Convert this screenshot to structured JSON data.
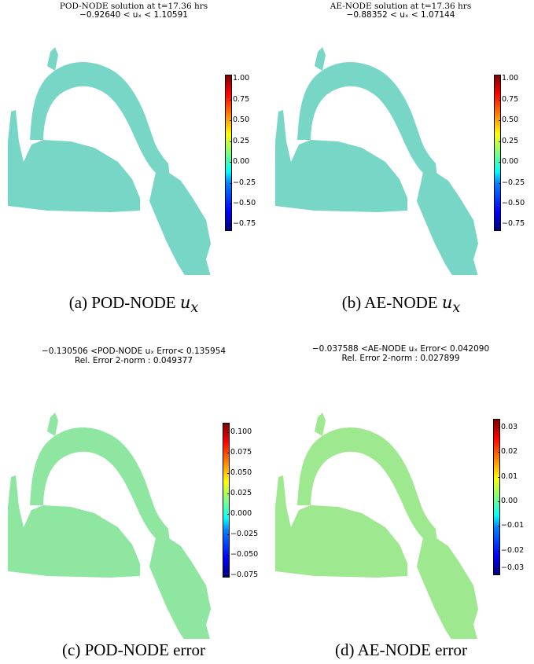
{
  "panels": [
    {
      "title_line1": "POD-NODE solution at t=17.36 hrs",
      "title_line2": "−0.92640 < uₓ < 1.10591",
      "caption_prefix": "(a) POD-NODE ",
      "caption_math": "u",
      "caption_sub": "x",
      "colorbar_ticks": [
        "1.00",
        "0.75",
        "0.50",
        "0.25",
        "0.00",
        "−0.25",
        "−0.50",
        "−0.75"
      ]
    },
    {
      "title_line1": "AE-NODE solution at t=17.36 hrs",
      "title_line2": "−0.88352 < uₓ < 1.07144",
      "caption_prefix": "(b) AE-NODE ",
      "caption_math": "u",
      "caption_sub": "x",
      "colorbar_ticks": [
        "1.00",
        "0.75",
        "0.50",
        "0.25",
        "0.00",
        "−0.25",
        "−0.50",
        "−0.75"
      ]
    },
    {
      "title_line1": "−0.130506 <POD-NODE uₓ Error< 0.135954",
      "title_line2": "Rel. Error 2-norm : 0.049377",
      "caption_prefix": "(c) POD-NODE error",
      "colorbar_ticks": [
        "0.100",
        "0.075",
        "0.050",
        "0.025",
        "0.000",
        "−0.025",
        "−0.050",
        "−0.075"
      ]
    },
    {
      "title_line1": "−0.037588 <AE-NODE uₓ Error< 0.042090",
      "title_line2": "Rel. Error 2-norm : 0.027899",
      "caption_prefix": "(d) AE-NODE error",
      "colorbar_ticks": [
        "0.03",
        "0.02",
        "0.01",
        "0.00",
        "−0.01",
        "−0.02",
        "−0.03"
      ]
    }
  ],
  "colors": {
    "jet_low": "#00007f",
    "jet_mid": "#7fff7f",
    "jet_high": "#7f0000",
    "domain_base": "#7ee6a8"
  }
}
